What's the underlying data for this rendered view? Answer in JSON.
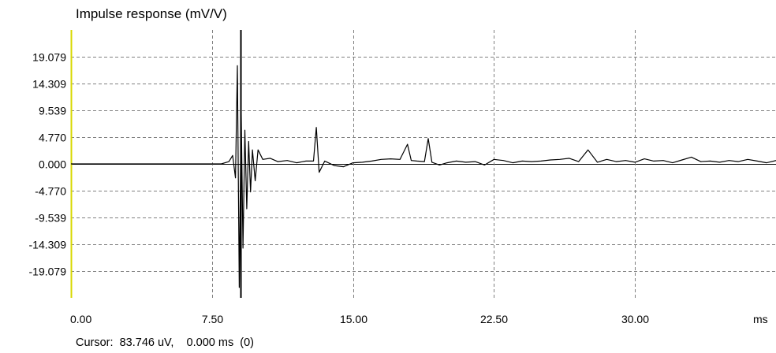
{
  "chart_data": {
    "type": "line",
    "title": "Impulse response (mV/V)",
    "xlabel": "",
    "ylabel": "",
    "x_unit_label": "ms",
    "xlim": [
      0,
      37.5
    ],
    "ylim": [
      -23.85,
      23.85
    ],
    "x_ticks": [
      0,
      7.5,
      15,
      22.5,
      30
    ],
    "x_tick_labels": [
      "0.00",
      "7.50",
      "15.00",
      "22.50",
      "30.00"
    ],
    "y_ticks": [
      19.079,
      14.309,
      9.539,
      4.77,
      0,
      -4.77,
      -9.539,
      -14.309,
      -19.079
    ],
    "y_tick_labels": [
      "19.079",
      "14.309",
      "9.539",
      "4.770",
      "0.000",
      "-4.770",
      "-9.539",
      "-14.309",
      "-19.079"
    ],
    "grid": true,
    "cursor_x": 9.0,
    "series": [
      {
        "x": [
          0,
          8.0,
          8.4,
          8.6,
          8.75,
          8.85,
          8.95,
          9.05,
          9.15,
          9.25,
          9.35,
          9.45,
          9.55,
          9.65,
          9.8,
          9.95,
          10.2,
          10.6,
          11.0,
          11.5,
          12.0,
          12.5,
          12.9,
          13.05,
          13.2,
          13.5,
          14.0,
          14.5,
          15.0,
          15.5,
          16.0,
          16.5,
          17.0,
          17.5,
          17.9,
          18.1,
          18.4,
          18.8,
          19.0,
          19.2,
          19.6,
          20.0,
          20.5,
          21.0,
          21.5,
          22.0,
          22.5,
          23.0,
          23.5,
          24.0,
          24.5,
          25.0,
          25.5,
          26.0,
          26.5,
          27.0,
          27.5,
          28.0,
          28.5,
          29.0,
          29.5,
          30.0,
          30.5,
          31.0,
          31.5,
          32.0,
          32.5,
          33.0,
          33.5,
          34.0,
          34.5,
          35.0,
          35.5,
          36.0,
          36.5,
          37.0,
          37.5
        ],
        "values": [
          0,
          0,
          0.4,
          1.5,
          -2.5,
          17.5,
          -22.0,
          10.0,
          -15.0,
          6.0,
          -8.0,
          4.0,
          -5.0,
          2.5,
          -3.0,
          2.5,
          0.8,
          1.0,
          0.4,
          0.6,
          0.2,
          0.5,
          0.5,
          6.5,
          -1.5,
          0.5,
          -0.3,
          -0.5,
          0.2,
          0.3,
          0.5,
          0.8,
          0.9,
          0.8,
          3.5,
          0.6,
          0.5,
          0.4,
          4.5,
          0.3,
          -0.2,
          0.2,
          0.5,
          0.3,
          0.4,
          -0.2,
          0.8,
          0.6,
          0.2,
          0.5,
          0.4,
          0.5,
          0.7,
          0.8,
          1.0,
          0.4,
          2.5,
          0.3,
          0.8,
          0.4,
          0.6,
          0.3,
          0.9,
          0.5,
          0.6,
          0.2,
          0.7,
          1.2,
          0.4,
          0.5,
          0.3,
          0.6,
          0.4,
          0.8,
          0.5,
          0.2,
          0.6
        ]
      }
    ]
  },
  "cursor": {
    "label": "Cursor:",
    "value": "83.746 uV,",
    "time": "0.000 ms  (0)"
  }
}
